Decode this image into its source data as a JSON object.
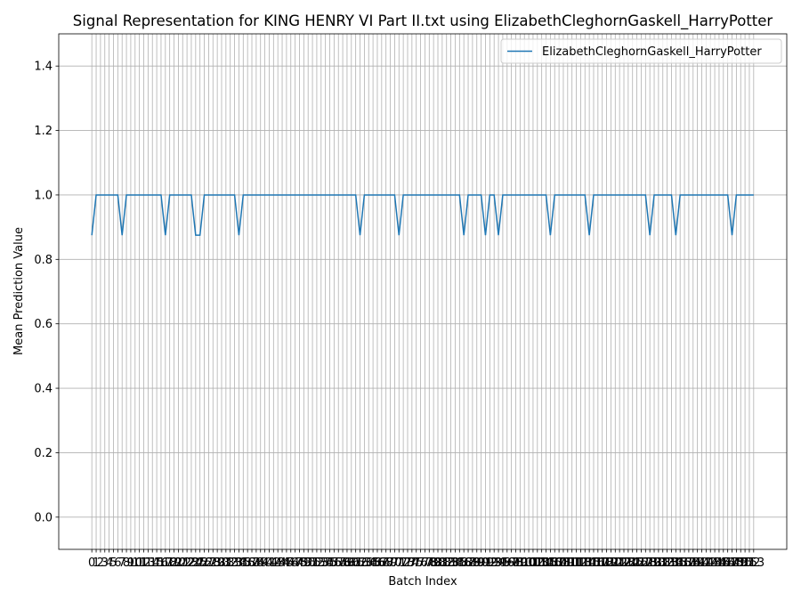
{
  "chart_data": {
    "type": "line",
    "title": "Signal Representation for KING HENRY VI Part II.txt using ElizabethCleghornGaskell_HarryPotter",
    "xlabel": "Batch Index",
    "ylabel": "Mean Prediction Value",
    "x": [
      0,
      1,
      2,
      3,
      4,
      5,
      6,
      7,
      8,
      9,
      10,
      11,
      12,
      13,
      14,
      15,
      16,
      17,
      18,
      19,
      20,
      21,
      22,
      23,
      24,
      25,
      26,
      27,
      28,
      29,
      30,
      31,
      32,
      33,
      34,
      35,
      36,
      37,
      38,
      39,
      40,
      41,
      42,
      43,
      44,
      45,
      46,
      47,
      48,
      49,
      50,
      51,
      52,
      53,
      54,
      55,
      56,
      57,
      58,
      59,
      60,
      61,
      62,
      63,
      64,
      65,
      66,
      67,
      68,
      69,
      70,
      71,
      72,
      73,
      74,
      75,
      76,
      77,
      78,
      79,
      80,
      81,
      82,
      83,
      84,
      85,
      86,
      87,
      88,
      89,
      90,
      91,
      92,
      93,
      94,
      95,
      96,
      97,
      98,
      99,
      100,
      101,
      102,
      103,
      104,
      105,
      106,
      107,
      108,
      109,
      110,
      111,
      112,
      113,
      114,
      115,
      116,
      117,
      118,
      119,
      120,
      121,
      122,
      123,
      124,
      125,
      126,
      127,
      128,
      129,
      130,
      131,
      132,
      133,
      134,
      135,
      136,
      137,
      138,
      139,
      140,
      141,
      142,
      143,
      144,
      145,
      146,
      147,
      148,
      149,
      150,
      151,
      152,
      153
    ],
    "series": [
      {
        "name": "ElizabethCleghornGaskell_HarryPotter",
        "color": "#1f77b4",
        "values": [
          0.875,
          1,
          1,
          1,
          1,
          1,
          1,
          0.875,
          1,
          1,
          1,
          1,
          1,
          1,
          1,
          1,
          1,
          0.875,
          1,
          1,
          1,
          1,
          1,
          1,
          0.875,
          0.875,
          1,
          1,
          1,
          1,
          1,
          1,
          1,
          1,
          0.875,
          1,
          1,
          1,
          1,
          1,
          1,
          1,
          1,
          1,
          1,
          1,
          1,
          1,
          1,
          1,
          1,
          1,
          1,
          1,
          1,
          1,
          1,
          1,
          1,
          1,
          1,
          1,
          0.875,
          1,
          1,
          1,
          1,
          1,
          1,
          1,
          1,
          0.875,
          1,
          1,
          1,
          1,
          1,
          1,
          1,
          1,
          1,
          1,
          1,
          1,
          1,
          1,
          0.875,
          1,
          1,
          1,
          1,
          0.875,
          1,
          1,
          0.875,
          1,
          1,
          1,
          1,
          1,
          1,
          1,
          1,
          1,
          1,
          1,
          0.875,
          1,
          1,
          1,
          1,
          1,
          1,
          1,
          1,
          0.875,
          1,
          1,
          1,
          1,
          1,
          1,
          1,
          1,
          1,
          1,
          1,
          1,
          1,
          0.875,
          1,
          1,
          1,
          1,
          1,
          0.875,
          1,
          1,
          1,
          1,
          1,
          1,
          1,
          1,
          1,
          1,
          1,
          1,
          0.875,
          1,
          1,
          1,
          1,
          1
        ]
      }
    ],
    "xlim": [
      -7.65,
      160.65
    ],
    "ylim": [
      -0.1,
      1.5
    ],
    "yticks": [
      {
        "value": 0,
        "label": "0.0"
      },
      0.2,
      0.4,
      0.6,
      0.8,
      {
        "value": 1,
        "label": "1.0"
      },
      1.2,
      1.4
    ],
    "grid": true,
    "legend": "upper right"
  }
}
